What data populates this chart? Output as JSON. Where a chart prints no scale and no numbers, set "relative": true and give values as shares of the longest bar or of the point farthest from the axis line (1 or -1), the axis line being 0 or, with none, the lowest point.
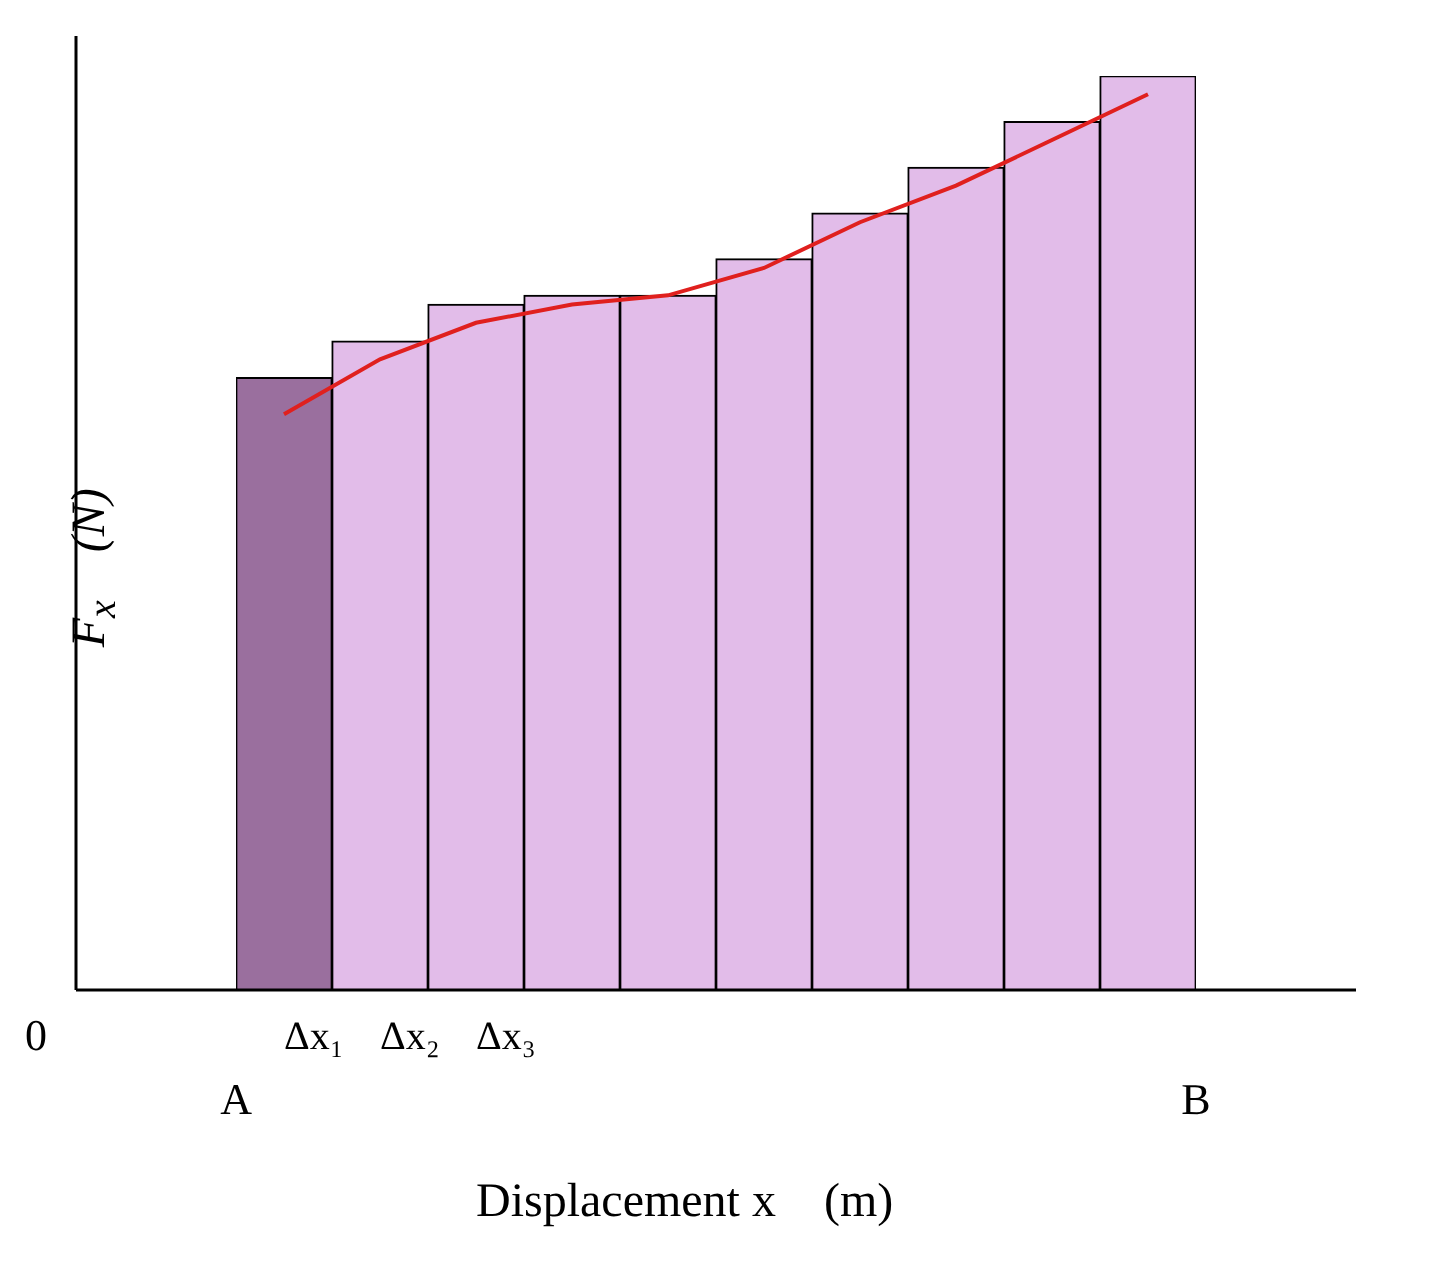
{
  "chart_data": {
    "type": "bar",
    "relative": true,
    "xlabel": "Displacement x    (m)",
    "ylabel": "F$_{x}$    (N)",
    "categories": [
      "Δx₁",
      "Δx₂",
      "Δx₃",
      null,
      null,
      null,
      null,
      null,
      null,
      null
    ],
    "series": [
      {
        "colors": [
          "#9a6f9e",
          "#e2bce9",
          "#e2bce9",
          "#e2bce9",
          "#e2bce9",
          "#e2bce9",
          "#e2bce9",
          "#e2bce9",
          "#e2bce9",
          "#e2bce9"
        ],
        "values": [
          0.67,
          0.71,
          0.75,
          0.76,
          0.76,
          0.8,
          0.85,
          0.9,
          0.95,
          1
        ]
      },
      {
        "type": "line",
        "color": "#e0201e",
        "values": [
          0.63,
          0.69,
          0.73,
          0.75,
          0.76,
          0.79,
          0.84,
          0.88,
          0.93,
          0.98
        ]
      }
    ],
    "annotations": [
      "0",
      "A",
      "B"
    ],
    "grid": false,
    "legend": false,
    "marker": "none"
  }
}
